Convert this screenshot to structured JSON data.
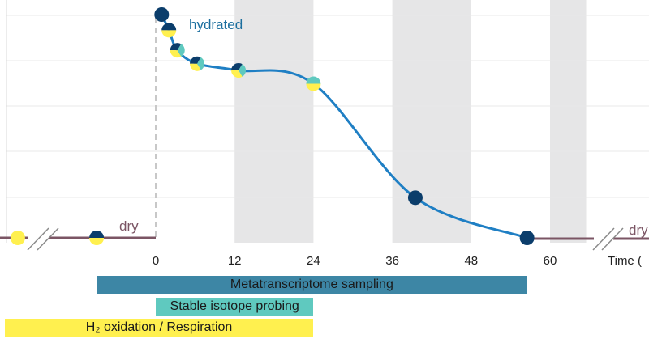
{
  "chart_data": {
    "type": "line",
    "x_ticks": [
      0,
      12,
      24,
      36,
      48,
      60
    ],
    "x_range": [
      -23,
      73.5
    ],
    "y_range": [
      0,
      100
    ],
    "xlabel": "Time (",
    "grid": "horizontal",
    "shaded_intervals": [
      [
        12,
        24
      ],
      [
        36,
        48
      ],
      [
        60,
        65.5
      ]
    ],
    "series": [
      {
        "name": "hydrated curve",
        "x": [
          0.9,
          2,
          3.3,
          6.3,
          12.6,
          24,
          39.5,
          56.5
        ],
        "y": [
          100,
          93,
          84,
          78,
          75,
          69,
          18,
          0
        ]
      }
    ],
    "markers": [
      {
        "x": -21,
        "y": 0,
        "colors": [
          "#fff04f"
        ]
      },
      {
        "x": -9,
        "y": 0,
        "colors": [
          "#0b3d6b",
          "#fff04f"
        ]
      },
      {
        "x": 0.9,
        "y": 100,
        "colors": [
          "#0b3d6b"
        ]
      },
      {
        "x": 2,
        "y": 93,
        "colors": [
          "#0b3d6b",
          "#fff04f"
        ]
      },
      {
        "x": 3.3,
        "y": 84,
        "colors": [
          "#0b3d6b",
          "#5fc9bf",
          "#fff04f"
        ]
      },
      {
        "x": 6.3,
        "y": 78,
        "colors": [
          "#0b3d6b",
          "#5fc9bf",
          "#fff04f"
        ]
      },
      {
        "x": 12.6,
        "y": 75,
        "colors": [
          "#0b3d6b",
          "#5fc9bf",
          "#fff04f"
        ]
      },
      {
        "x": 24,
        "y": 69,
        "colors": [
          "#5fc9bf",
          "#fff04f"
        ]
      },
      {
        "x": 39.5,
        "y": 18,
        "colors": [
          "#0b3d6b"
        ]
      },
      {
        "x": 56.5,
        "y": 0,
        "colors": [
          "#0b3d6b"
        ]
      }
    ],
    "annotations": [
      {
        "text": "hydrated",
        "color": "#1b6e9e"
      },
      {
        "text": "dry",
        "color": "#7b5564"
      },
      {
        "text": "dry",
        "color": "#7b5564"
      }
    ],
    "bars": [
      {
        "label": "Metatranscriptome sampling",
        "start": -9,
        "end": 56.5,
        "color": "#3d86a5"
      },
      {
        "label": "Stable isotope probing",
        "start": 0,
        "end": 24,
        "color": "#5fc9bf"
      },
      {
        "label": "H₂ oxidation / Respiration",
        "start": -23,
        "end": 24,
        "color": "#fff04f"
      }
    ],
    "colors": {
      "curve": "#1f7fc4",
      "baseline": "#7b5564",
      "shade": "#e6e6e7",
      "grid": "#e8e8e8"
    }
  }
}
